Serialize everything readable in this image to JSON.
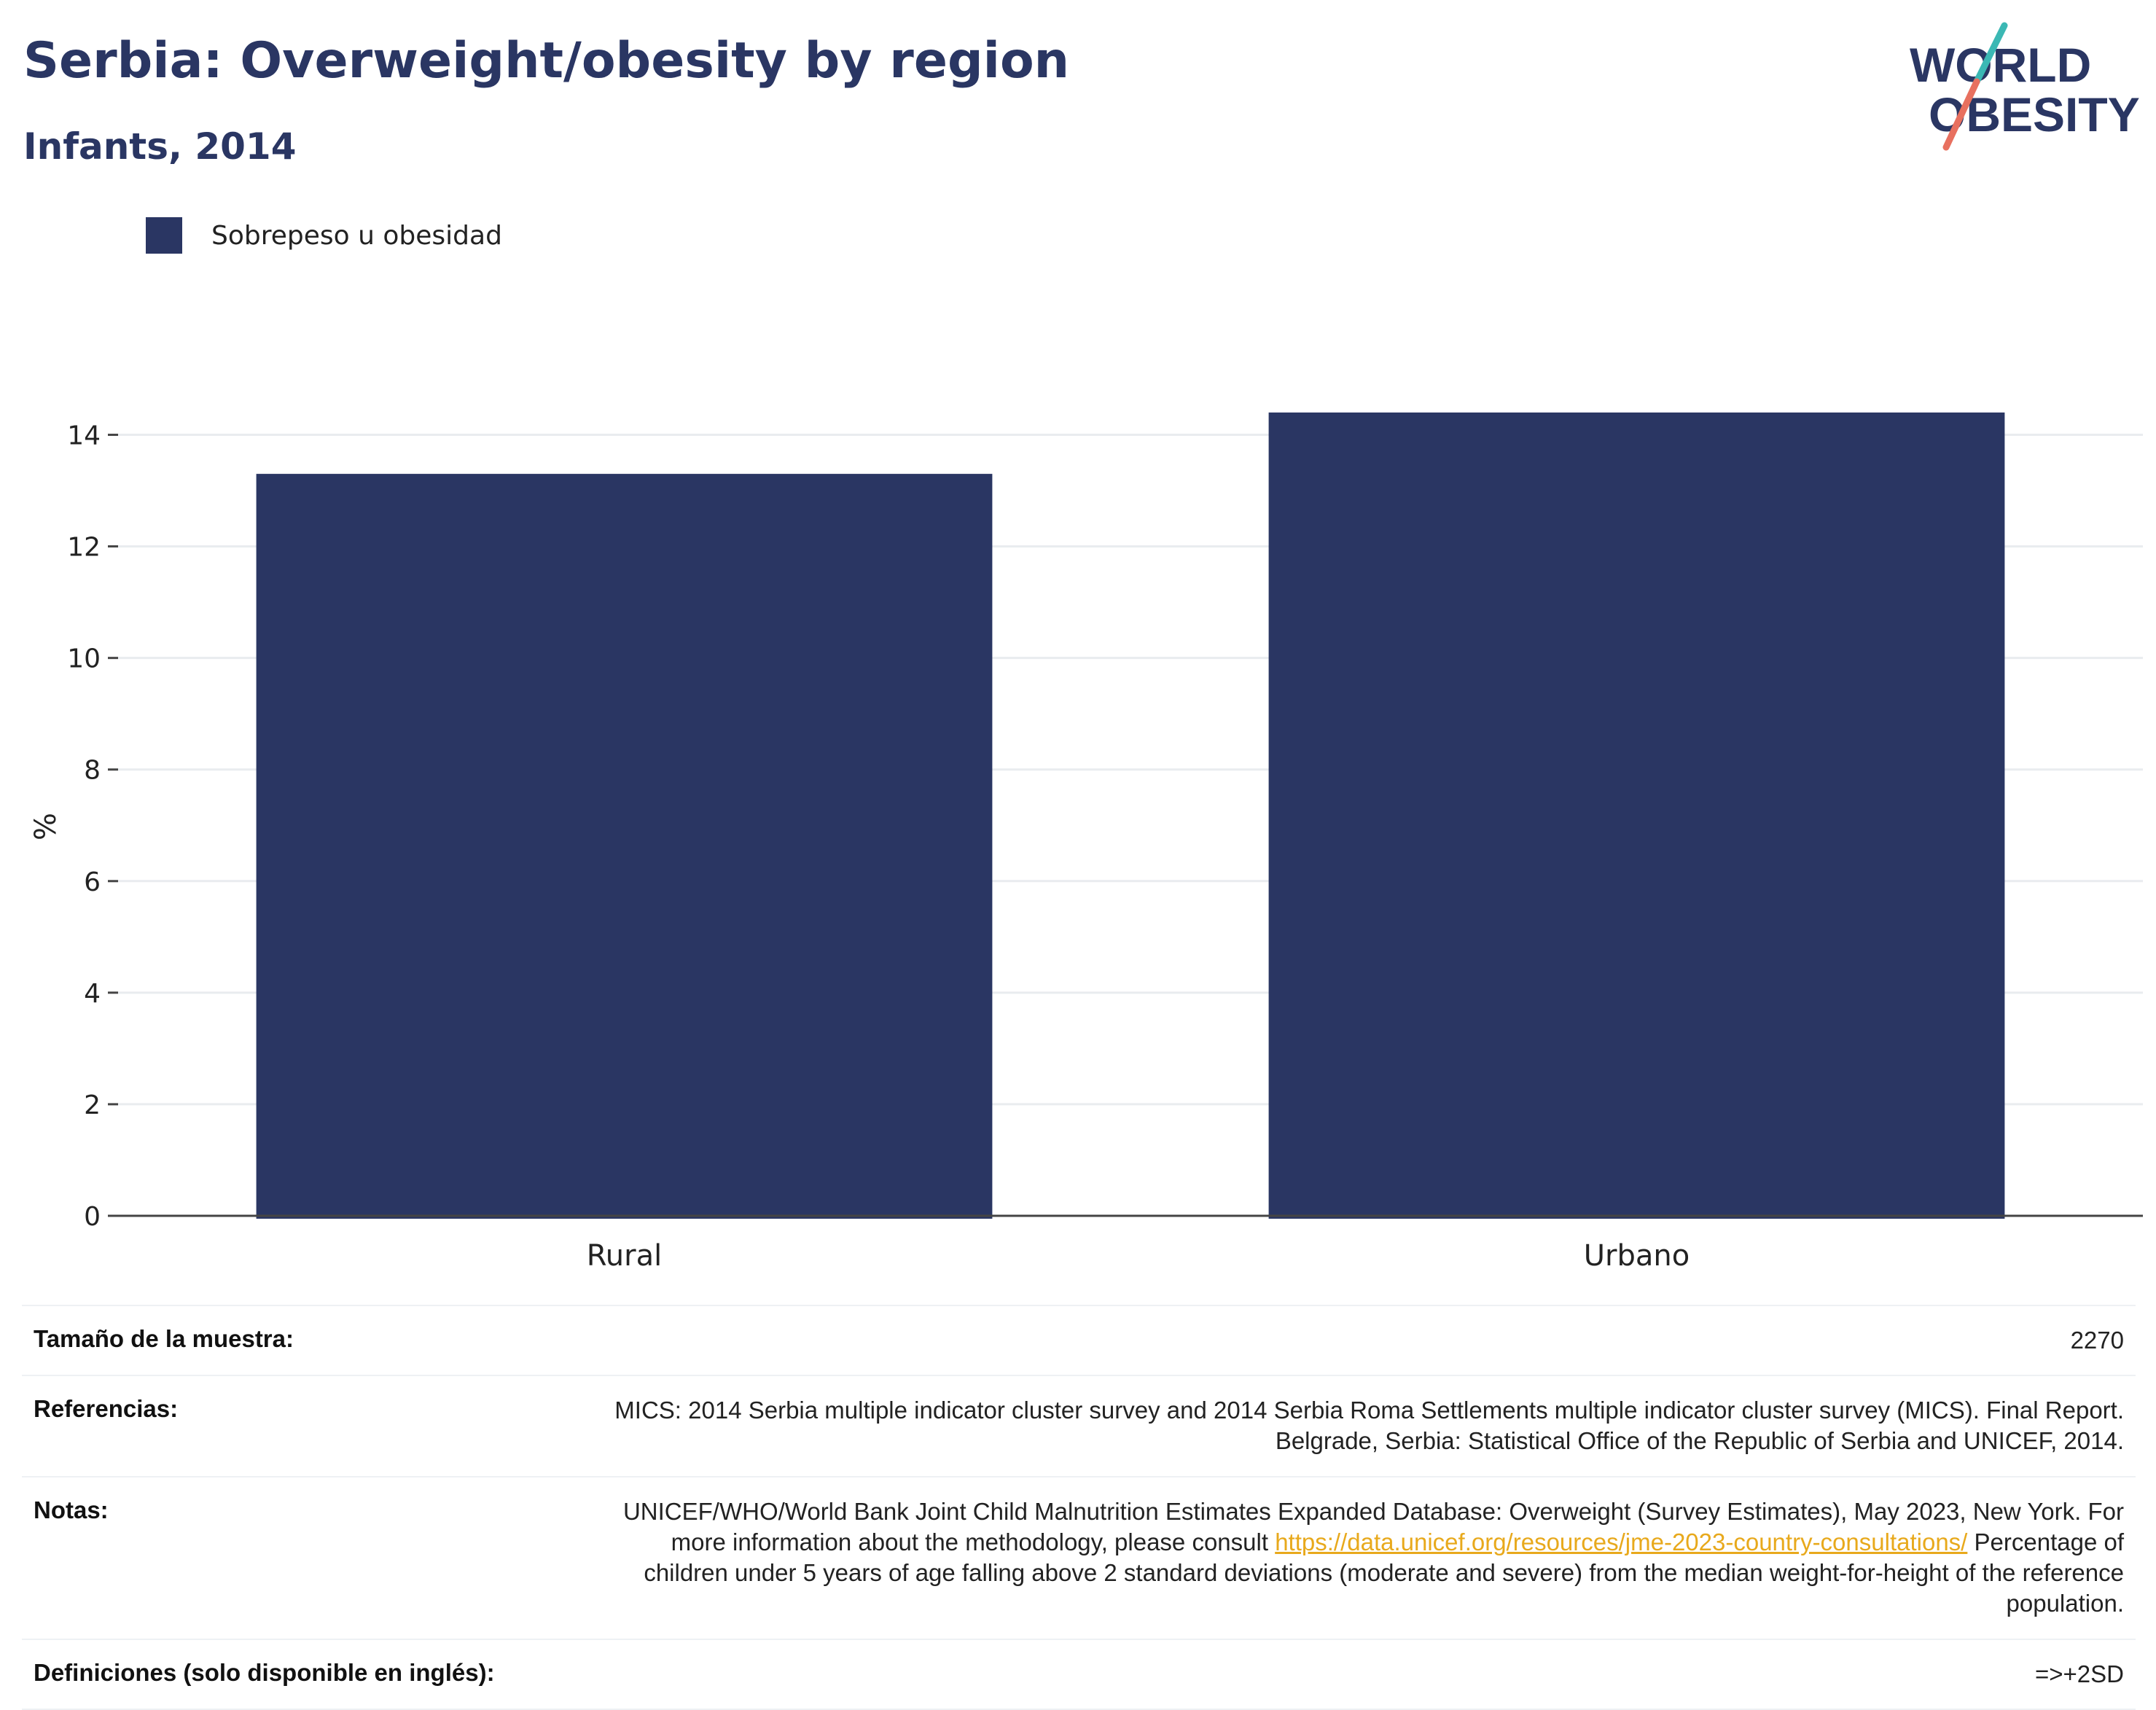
{
  "header": {
    "title": "Serbia: Overweight/obesity by region",
    "subtitle": "Infants, 2014"
  },
  "logo": {
    "line1": "WORLD",
    "line2": "OBESITY"
  },
  "colors": {
    "bar": "#2a3663",
    "title": "#2a3663",
    "link": "#e8a91c",
    "grid": "#e9ecef"
  },
  "chart_data": {
    "type": "bar",
    "categories": [
      "Rural",
      "Urbano"
    ],
    "series": [
      {
        "name": "Sobrepeso u obesidad",
        "values": [
          13.3,
          14.4
        ]
      }
    ],
    "ylabel": "%",
    "xlabel": "",
    "ylim": [
      0,
      15
    ],
    "yticks": [
      0,
      2,
      4,
      6,
      8,
      10,
      12,
      14
    ],
    "grid": true,
    "legend": "top-left"
  },
  "info": {
    "sample_label": "Tamaño de la muestra:",
    "sample_value": "2270",
    "refs_label": "Referencias:",
    "refs_value": "MICS: 2014 Serbia multiple indicator cluster survey and 2014 Serbia Roma Settlements multiple indicator cluster survey (MICS). Final Report. Belgrade, Serbia: Statistical Office of the Republic of Serbia and UNICEF, 2014.",
    "notes_label": "Notas:",
    "notes_text1": "UNICEF/WHO/World Bank Joint Child Malnutrition Estimates Expanded Database: Overweight (Survey Estimates), May 2023, New York. For more information about the methodology, please consult ",
    "notes_link": "https://data.unicef.org/resources/jme-2023-country-consultations/",
    "notes_text2": " Percentage of children under 5 years of age falling above 2 standard deviations (moderate and severe) from the median weight-for-height of the reference population.",
    "defs_label": "Definiciones (solo disponible en inglés):",
    "defs_value": "=>+2SD"
  }
}
